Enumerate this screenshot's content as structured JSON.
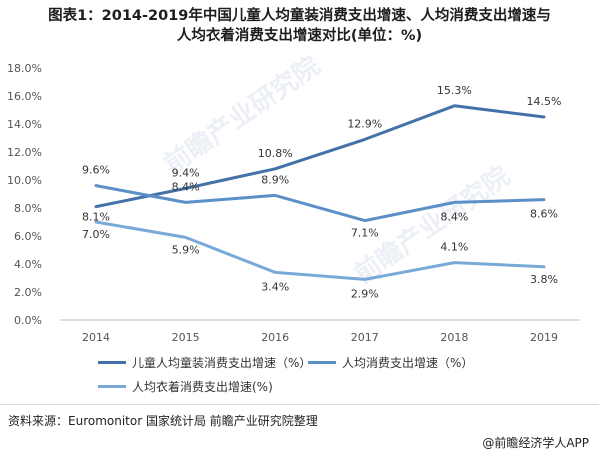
{
  "title_line1": "图表1：2014-2019年中国儿童人均童装消费支出增速、人均消费支出增速与",
  "title_line2": "人均衣着消费支出增速对比(单位：%)",
  "source": "资料来源：Euromonitor 国家统计局 前瞻产业研究院整理",
  "brand": "@前瞻经济学人APP",
  "watermark": "前瞻产业研究院",
  "chart_data": {
    "type": "line",
    "x": [
      "2014",
      "2015",
      "2016",
      "2017",
      "2018",
      "2019"
    ],
    "ylim": [
      0,
      18
    ],
    "yticks": [
      "0.0%",
      "2.0%",
      "4.0%",
      "6.0%",
      "8.0%",
      "10.0%",
      "12.0%",
      "14.0%",
      "16.0%",
      "18.0%"
    ],
    "grid": false,
    "legend_position": "bottom",
    "series": [
      {
        "name": "儿童人均童装消费支出增速（%）",
        "color": "#4472a8",
        "values": [
          8.1,
          9.4,
          10.8,
          12.9,
          15.3,
          14.5
        ],
        "labels": [
          "8.1%",
          "9.4%",
          "10.8%",
          "12.9%",
          "15.3%",
          "14.5%"
        ]
      },
      {
        "name": "人均消费支出增速（%）",
        "color": "#5b8fc7",
        "values": [
          9.6,
          8.4,
          8.9,
          7.1,
          8.4,
          8.6
        ],
        "labels": [
          "9.6%",
          "8.4%",
          "8.9%",
          "7.1%",
          "8.4%",
          "8.6%"
        ]
      },
      {
        "name": "人均衣着消费支出增速(%)",
        "color": "#79a9d8",
        "values": [
          7.0,
          5.9,
          3.4,
          2.9,
          4.1,
          3.8
        ],
        "labels": [
          "7.0%",
          "5.9%",
          "3.4%",
          "2.9%",
          "4.1%",
          "3.8%"
        ]
      }
    ]
  }
}
